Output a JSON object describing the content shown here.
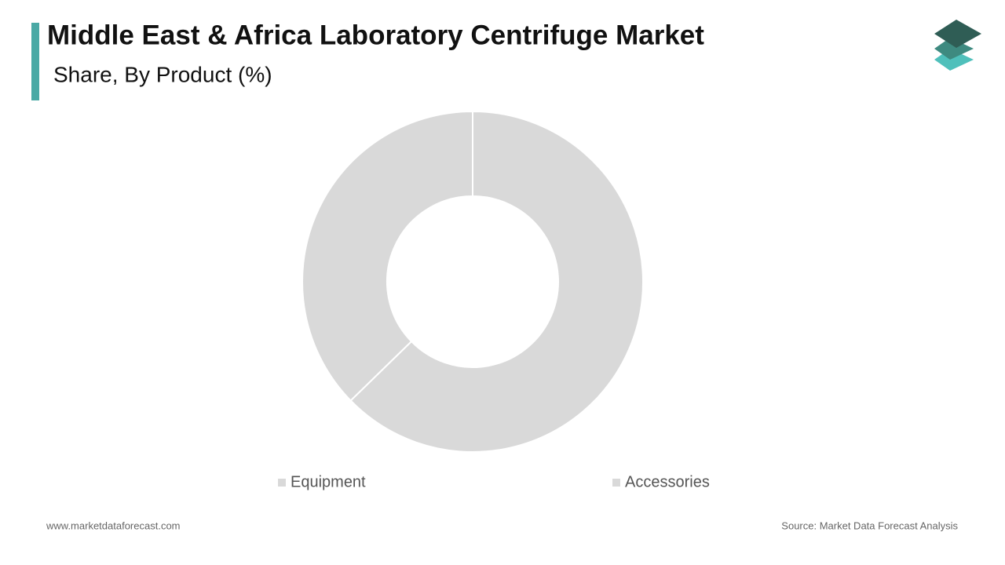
{
  "chart_data": {
    "type": "donut",
    "title": "Middle East & Africa Laboratory Centrifuge Market",
    "subtitle": "Share, By Product (%)",
    "categories": [
      "Equipment",
      "Accessories"
    ],
    "values": [
      62.7,
      37.3
    ],
    "colors": [
      "#d9d9d9",
      "#d9d9d9"
    ],
    "legend": "bottom"
  },
  "footer": {
    "website": "www.marketdataforecast.com",
    "source": "Source: Market Data Forecast Analysis"
  }
}
